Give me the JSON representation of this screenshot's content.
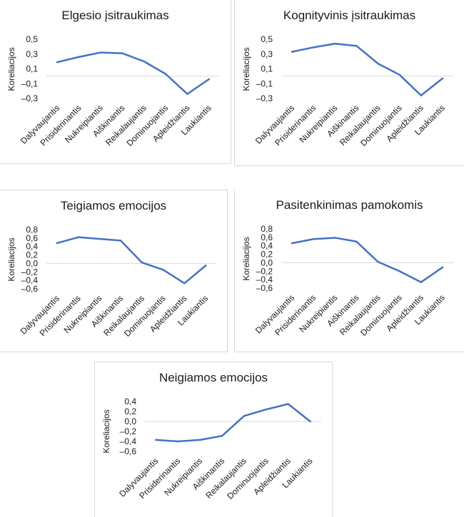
{
  "chart_data": [
    {
      "type": "line",
      "title": "Elgesio įsitraukimas",
      "ylabel": "Koreliacijos",
      "xlabel": "",
      "categories": [
        "Dalyvaujantis",
        "Prisiderinantis",
        "Nukreipiantis",
        "Aiškinantis",
        "Reikalaujantis",
        "Dominuojantis",
        "Apleidžiantis",
        "Laukiantis"
      ],
      "values": [
        0.19,
        0.26,
        0.32,
        0.31,
        0.2,
        0.03,
        -0.24,
        -0.04
      ],
      "yticks": [
        "0,5",
        "0,3",
        "0,1",
        "–0,1",
        "–0,3"
      ],
      "ytick_values": [
        0.5,
        0.3,
        0.1,
        -0.1,
        -0.3
      ],
      "ylim": [
        -0.3,
        0.5
      ],
      "color": "#4472c4",
      "grid": false
    },
    {
      "type": "line",
      "title": "Kognityvinis įsitraukimas",
      "ylabel": "Koreliacijos",
      "xlabel": "",
      "categories": [
        "Dalyvaujantis",
        "Prisiderinantis",
        "Nukreipiantis",
        "Aiškinantis",
        "Reikalaujantis",
        "Dominuojantis",
        "Apleidžiantis",
        "Laukiantis"
      ],
      "values": [
        0.33,
        0.39,
        0.44,
        0.41,
        0.17,
        0.02,
        -0.26,
        -0.03
      ],
      "yticks": [
        "0,5",
        "0,3",
        "0,1",
        "–0,1",
        "–0,3"
      ],
      "ytick_values": [
        0.5,
        0.3,
        0.1,
        -0.1,
        -0.3
      ],
      "ylim": [
        -0.3,
        0.5
      ],
      "color": "#4472c4",
      "grid": false
    },
    {
      "type": "line",
      "title": "Teigiamos emocijos",
      "ylabel": "Koreliacijos",
      "xlabel": "",
      "categories": [
        "Dalyvaujantis",
        "Prisiderinantis",
        "Nukreipiantis",
        "Aiškinantis",
        "Reikalaujantis",
        "Dominuojantis",
        "Apleidžiantis",
        "Laukiantis"
      ],
      "values": [
        0.48,
        0.62,
        0.58,
        0.54,
        0.02,
        -0.15,
        -0.47,
        -0.05
      ],
      "yticks": [
        "0,8",
        "0,6",
        "0,4",
        "0,2",
        "0,0",
        "–0,2",
        "–0,4",
        "–0,6"
      ],
      "ytick_values": [
        0.8,
        0.6,
        0.4,
        0.2,
        0.0,
        -0.2,
        -0.4,
        -0.6
      ],
      "ylim": [
        -0.6,
        0.8
      ],
      "color": "#4472c4",
      "grid": false
    },
    {
      "type": "line",
      "title": "Pasitenkinimas pamokomis",
      "ylabel": "Koreliacijos",
      "xlabel": "",
      "categories": [
        "Dalyvaujantis",
        "Prisiderinantis",
        "Nukreipiantis",
        "Aiškinantis",
        "Reikalaujantis",
        "Dominuojantis",
        "Apleidžiantis",
        "Laukiantis"
      ],
      "values": [
        0.46,
        0.56,
        0.59,
        0.5,
        0.02,
        -0.2,
        -0.46,
        -0.11
      ],
      "yticks": [
        "0,8",
        "0,6",
        "0,4",
        "0,2",
        "0,0",
        "–0,2",
        "–0,4",
        "–0,6"
      ],
      "ytick_values": [
        0.8,
        0.6,
        0.4,
        0.2,
        0.0,
        -0.2,
        -0.4,
        -0.6
      ],
      "ylim": [
        -0.6,
        0.8
      ],
      "color": "#4472c4",
      "grid": false
    },
    {
      "type": "line",
      "title": "Neigiamos emocijos",
      "ylabel": "Koreliacijos",
      "xlabel": "",
      "categories": [
        "Dalyvaujantis",
        "Prisiderinantis",
        "Nukreipiantis",
        "Aiškinantis",
        "Reikalaujantis",
        "Dominuojantis",
        "Apleidžiantis",
        "Laukiantis"
      ],
      "values": [
        -0.37,
        -0.4,
        -0.37,
        -0.29,
        0.11,
        0.24,
        0.35,
        0.0
      ],
      "yticks": [
        "0,4",
        "0,2",
        "0,0",
        "–0,2",
        "–0,4",
        "–0,6"
      ],
      "ytick_values": [
        0.4,
        0.2,
        0.0,
        -0.2,
        -0.4,
        -0.6
      ],
      "ylim": [
        -0.6,
        0.4
      ],
      "color": "#4472c4",
      "grid": false
    }
  ]
}
